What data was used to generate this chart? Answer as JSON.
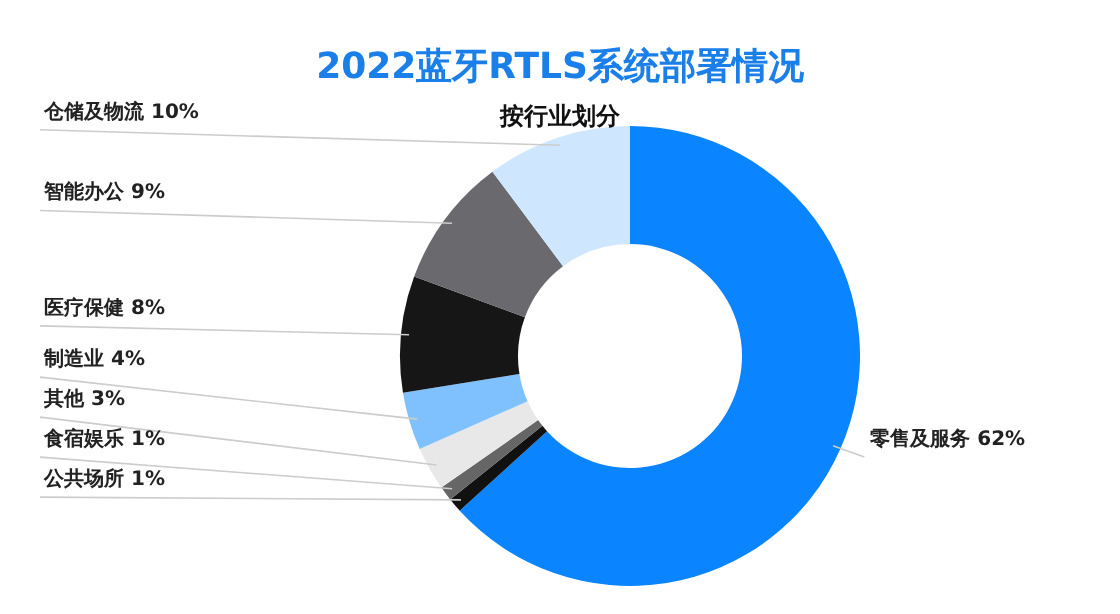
{
  "chart_data": {
    "type": "donut",
    "title": "2022蓝牙RTLS系统部署情况",
    "subtitle": "按行业划分",
    "categories": [
      "零售及服务",
      "公共场所",
      "食宿娱乐",
      "其他",
      "制造业",
      "医疗保健",
      "智能办公",
      "仓储及物流"
    ],
    "values": [
      62,
      1,
      1,
      3,
      4,
      8,
      9,
      10
    ],
    "value_labels": [
      "62%",
      "1%",
      "1%",
      "3%",
      "4%",
      "8%",
      "9%",
      "10%"
    ],
    "colors": [
      "#0a84ff",
      "#111111",
      "#666666",
      "#e8e8e8",
      "#7fc1ff",
      "#161616",
      "#6a6a6e",
      "#cfe6ff"
    ],
    "legend": false
  }
}
